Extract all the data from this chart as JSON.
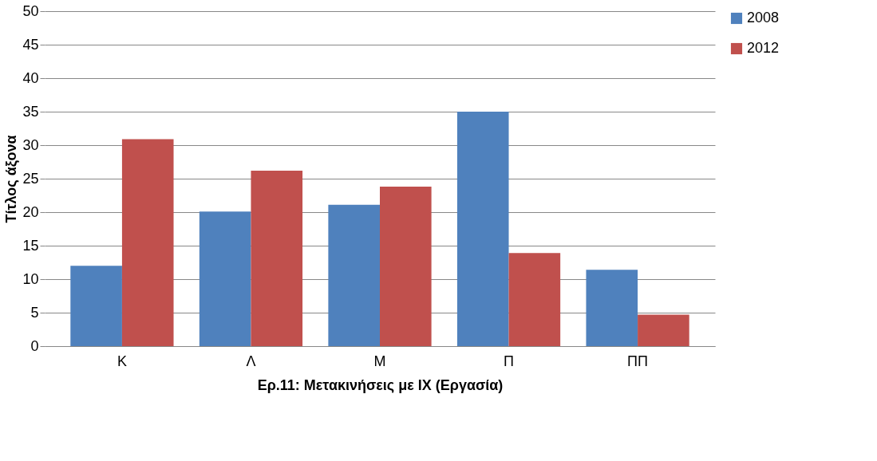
{
  "chart_data": {
    "type": "bar",
    "xlabel": "Ερ.11: Μετακινήσεις με ΙΧ (Εργασία)",
    "ylabel": "Τίτλος άξονα",
    "categories": [
      "Κ",
      "Λ",
      "Μ",
      "Π",
      "ΠΠ"
    ],
    "series": [
      {
        "name": "2008",
        "color": "#4f81bd",
        "values": [
          12,
          20.1,
          21.1,
          35,
          11.4
        ]
      },
      {
        "name": "2012",
        "color": "#c0504d",
        "values": [
          30.9,
          26.2,
          23.8,
          13.9,
          4.7
        ]
      }
    ],
    "ylim": [
      0,
      50
    ],
    "yticks": [
      0,
      5,
      10,
      15,
      20,
      25,
      30,
      35,
      40,
      45,
      50
    ],
    "grid": "y",
    "legend": "right"
  }
}
